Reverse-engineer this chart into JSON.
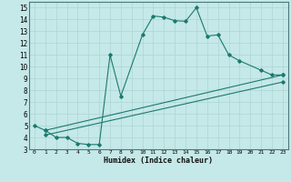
{
  "xlabel": "Humidex (Indice chaleur)",
  "bg_color": "#c5e8e8",
  "grid_color": "#afd4d4",
  "line_color": "#1a7a6e",
  "spine_color": "#4a7a7a",
  "xlim": [
    -0.5,
    23.5
  ],
  "ylim": [
    3,
    15.5
  ],
  "xticks": [
    0,
    1,
    2,
    3,
    4,
    5,
    6,
    7,
    8,
    9,
    10,
    11,
    12,
    13,
    14,
    15,
    16,
    17,
    18,
    19,
    20,
    21,
    22,
    23
  ],
  "yticks": [
    3,
    4,
    5,
    6,
    7,
    8,
    9,
    10,
    11,
    12,
    13,
    14,
    15
  ],
  "curve1_x": [
    0,
    1,
    2,
    3,
    4,
    5,
    6,
    7,
    8,
    10,
    11,
    12,
    13,
    14,
    15,
    16,
    17,
    18,
    19,
    21,
    22,
    23
  ],
  "curve1_y": [
    5.0,
    4.6,
    4.0,
    4.0,
    3.5,
    3.4,
    3.4,
    11.0,
    7.5,
    12.7,
    14.3,
    14.2,
    13.9,
    13.85,
    15.0,
    12.6,
    12.7,
    11.0,
    10.5,
    9.7,
    9.3,
    9.3
  ],
  "curve2_x": [
    1,
    23
  ],
  "curve2_y": [
    4.6,
    9.3
  ],
  "curve3_x": [
    1,
    23
  ],
  "curve3_y": [
    4.2,
    8.7
  ]
}
